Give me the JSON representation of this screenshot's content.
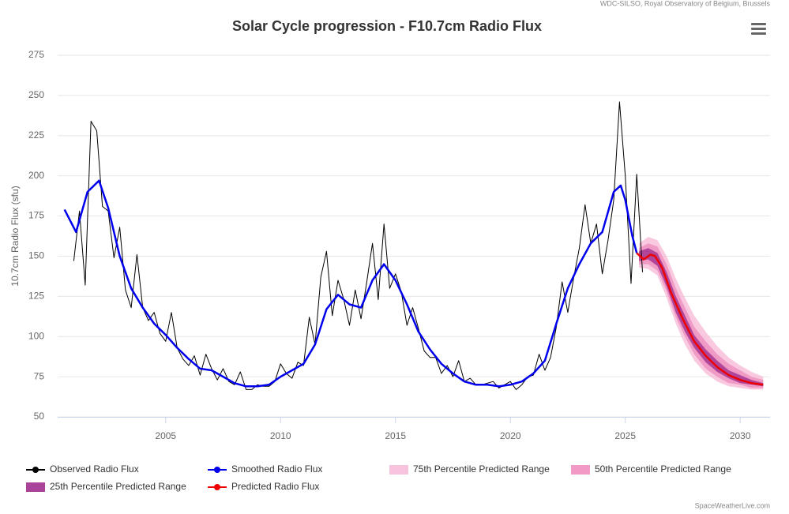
{
  "chart_data": {
    "type": "line",
    "title": "Solar Cycle progression - F10.7cm Radio Flux",
    "source_credit": "WDC-SILSO, Royal Observatory of Belgium, Brussels",
    "site_credit": "SpaceWeatherLive.com",
    "y_label": "10.7cm Radio Flux (sfu)",
    "xlim": [
      2000.3,
      2031.3
    ],
    "xticks": [
      2005,
      2010,
      2015,
      2020,
      2025,
      2030
    ],
    "ylim": [
      50,
      275
    ],
    "yticks": [
      50,
      75,
      100,
      125,
      150,
      175,
      200,
      225,
      250,
      275
    ],
    "grid": true,
    "series": [
      {
        "name": "Observed Radio Flux",
        "type": "line",
        "color": "#000000",
        "x": [
          2001.0,
          2001.25,
          2001.5,
          2001.75,
          2002.0,
          2002.25,
          2002.5,
          2002.75,
          2003.0,
          2003.25,
          2003.5,
          2003.75,
          2004.0,
          2004.25,
          2004.5,
          2004.75,
          2005.0,
          2005.25,
          2005.5,
          2005.75,
          2006.0,
          2006.25,
          2006.5,
          2006.75,
          2007.0,
          2007.25,
          2007.5,
          2007.75,
          2008.0,
          2008.25,
          2008.5,
          2008.75,
          2009.0,
          2009.25,
          2009.5,
          2009.75,
          2010.0,
          2010.25,
          2010.5,
          2010.75,
          2011.0,
          2011.25,
          2011.5,
          2011.75,
          2012.0,
          2012.25,
          2012.5,
          2012.75,
          2013.0,
          2013.25,
          2013.5,
          2013.75,
          2014.0,
          2014.25,
          2014.5,
          2014.75,
          2015.0,
          2015.25,
          2015.5,
          2015.75,
          2016.0,
          2016.25,
          2016.5,
          2016.75,
          2017.0,
          2017.25,
          2017.5,
          2017.75,
          2018.0,
          2018.25,
          2018.5,
          2018.75,
          2019.0,
          2019.25,
          2019.5,
          2019.75,
          2020.0,
          2020.25,
          2020.5,
          2020.75,
          2021.0,
          2021.25,
          2021.5,
          2021.75,
          2022.0,
          2022.25,
          2022.5,
          2022.75,
          2023.0,
          2023.25,
          2023.5,
          2023.75,
          2024.0,
          2024.25,
          2024.5,
          2024.75,
          2025.0,
          2025.25,
          2025.5,
          2025.75
        ],
        "values": [
          147,
          178,
          132,
          234,
          228,
          181,
          178,
          149,
          168,
          129,
          118,
          151,
          118,
          110,
          115,
          102,
          97,
          115,
          93,
          86,
          82,
          88,
          76,
          89,
          80,
          73,
          80,
          72,
          70,
          78,
          67,
          67,
          70,
          69,
          69,
          72,
          83,
          77,
          74,
          84,
          82,
          112,
          95,
          137,
          153,
          113,
          135,
          123,
          107,
          129,
          111,
          134,
          158,
          123,
          170,
          130,
          139,
          128,
          107,
          118,
          105,
          91,
          87,
          87,
          77,
          82,
          75,
          85,
          72,
          74,
          70,
          70,
          71,
          72,
          68,
          70,
          72,
          67,
          70,
          75,
          76,
          89,
          79,
          87,
          106,
          134,
          115,
          136,
          155,
          182,
          158,
          170,
          139,
          160,
          185,
          246,
          200,
          133,
          201,
          140
        ]
      },
      {
        "name": "Smoothed Radio Flux",
        "type": "line",
        "color": "#0000ee",
        "x": [
          2000.6,
          2001.1,
          2001.6,
          2002.1,
          2002.5,
          2003.0,
          2003.5,
          2004.0,
          2004.5,
          2005.0,
          2005.5,
          2006.0,
          2006.5,
          2007.0,
          2007.5,
          2008.0,
          2008.5,
          2009.0,
          2009.5,
          2010.0,
          2010.5,
          2011.0,
          2011.5,
          2012.0,
          2012.5,
          2013.0,
          2013.5,
          2014.0,
          2014.5,
          2015.0,
          2015.5,
          2016.0,
          2016.5,
          2017.0,
          2017.5,
          2018.0,
          2018.5,
          2019.0,
          2019.5,
          2020.0,
          2020.5,
          2021.0,
          2021.5,
          2022.0,
          2022.5,
          2023.0,
          2023.5,
          2024.0,
          2024.5,
          2024.8,
          2025.0,
          2025.3,
          2025.5
        ],
        "values": [
          179,
          165,
          190,
          197,
          180,
          150,
          130,
          118,
          108,
          101,
          93,
          86,
          80,
          79,
          75,
          71,
          69,
          69,
          70,
          75,
          79,
          83,
          95,
          117,
          126,
          120,
          118,
          135,
          145,
          135,
          120,
          103,
          92,
          83,
          77,
          72,
          70,
          70,
          69,
          70,
          72,
          77,
          85,
          108,
          130,
          145,
          158,
          165,
          190,
          194,
          185,
          163,
          152
        ]
      },
      {
        "name": "75th Percentile Predicted Range",
        "type": "arearange",
        "color": "#f7bcd8",
        "x": [
          2025.6,
          2026.0,
          2026.4,
          2026.8,
          2027.2,
          2027.6,
          2028.0,
          2028.5,
          2029.0,
          2029.5,
          2030.0,
          2030.5,
          2031.0
        ],
        "high": [
          158,
          162,
          160,
          150,
          136,
          124,
          113,
          103,
          94,
          87,
          82,
          78,
          75
        ],
        "low": [
          143,
          142,
          138,
          124,
          108,
          95,
          85,
          77,
          72,
          69,
          68,
          67,
          67
        ]
      },
      {
        "name": "50th Percentile Predicted Range",
        "type": "arearange",
        "color": "#ee8fbf",
        "x": [
          2025.6,
          2026.0,
          2026.4,
          2026.8,
          2027.2,
          2027.6,
          2028.0,
          2028.5,
          2029.0,
          2029.5,
          2030.0,
          2030.5,
          2031.0
        ],
        "high": [
          155,
          158,
          156,
          145,
          130,
          118,
          106,
          97,
          89,
          83,
          79,
          75,
          73
        ],
        "low": [
          145,
          145,
          141,
          128,
          112,
          100,
          89,
          80,
          75,
          71,
          70,
          68,
          68
        ]
      },
      {
        "name": "25th Percentile Predicted Range",
        "type": "arearange",
        "color": "#a0308f",
        "x": [
          2025.6,
          2026.0,
          2026.4,
          2026.8,
          2027.2,
          2027.6,
          2028.0,
          2028.5,
          2029.0,
          2029.5,
          2030.0,
          2030.5,
          2031.0
        ],
        "high": [
          153,
          155,
          152,
          140,
          125,
          113,
          101,
          92,
          85,
          79,
          76,
          73,
          71
        ],
        "low": [
          147,
          148,
          144,
          131,
          115,
          103,
          93,
          84,
          78,
          74,
          71,
          70,
          69
        ]
      },
      {
        "name": "Predicted Radio Flux",
        "type": "line",
        "color": "#ee0000",
        "x": [
          2025.5,
          2025.8,
          2026.1,
          2026.3,
          2026.6,
          2027.0,
          2027.5,
          2028.0,
          2028.5,
          2029.0,
          2029.5,
          2030.0,
          2030.5,
          2031.0
        ],
        "values": [
          152,
          148,
          151,
          150,
          143,
          127,
          111,
          97,
          88,
          81,
          76,
          73,
          71,
          70
        ]
      }
    ]
  }
}
